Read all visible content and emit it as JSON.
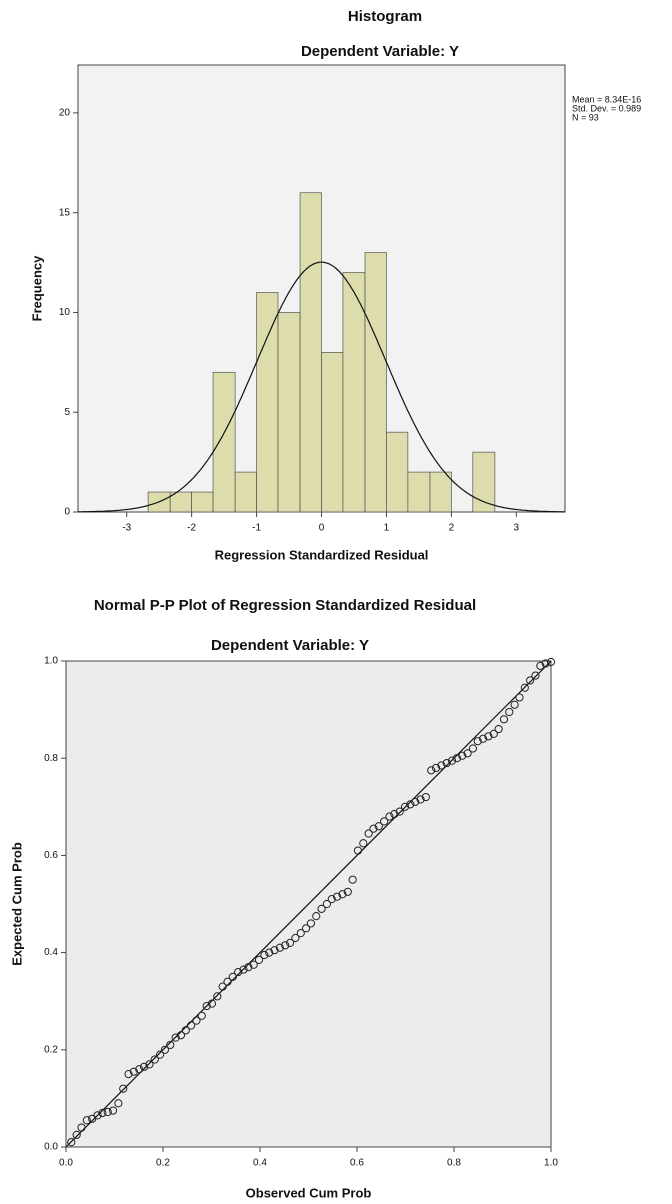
{
  "chart_data": [
    {
      "type": "histogram",
      "title": "Histogram",
      "subtitle": "Dependent Variable: Y",
      "x_label": "Regression Standardized Residual",
      "y_label": "Frequency",
      "bins": [
        -2.67,
        -2.33,
        -2,
        -1.67,
        -1.33,
        -1,
        -0.67,
        -0.33,
        0,
        0.33,
        0.67,
        1,
        1.33,
        1.67,
        2,
        2.33,
        2.67
      ],
      "values": [
        1,
        1,
        1,
        7,
        2,
        11,
        10,
        16,
        8,
        12,
        13,
        4,
        2,
        2,
        0,
        3
      ],
      "color": "#d8d8a0",
      "xlim": [
        -3.75,
        3.75
      ],
      "xticks": [
        -3,
        -2,
        -1,
        0,
        1,
        2,
        3
      ],
      "ylim": [
        0,
        22.4
      ],
      "yticks": [
        0,
        5,
        10,
        15,
        20
      ],
      "stats": [
        {
          "value": 8.34e-16,
          "label": "Mean = 8.34E-16"
        },
        {
          "value": 0.989,
          "label": "Std. Dev. = 0.989"
        },
        {
          "value": 93,
          "label": "N = 93"
        }
      ],
      "normal_curve": true,
      "grid": false
    },
    {
      "type": "scatter",
      "title": "Normal P-P Plot of Regression Standardized Residual",
      "subtitle": "Dependent Variable: Y",
      "x_label": "Observed Cum Prob",
      "y_label": "Expected Cum Prob",
      "x": [
        0.011,
        0.022,
        0.032,
        0.043,
        0.054,
        0.065,
        0.075,
        0.086,
        0.097,
        0.108,
        0.118,
        0.129,
        0.14,
        0.151,
        0.161,
        0.172,
        0.183,
        0.194,
        0.204,
        0.215,
        0.226,
        0.237,
        0.247,
        0.258,
        0.269,
        0.28,
        0.29,
        0.301,
        0.312,
        0.323,
        0.333,
        0.344,
        0.355,
        0.366,
        0.376,
        0.387,
        0.398,
        0.409,
        0.419,
        0.43,
        0.441,
        0.452,
        0.462,
        0.473,
        0.484,
        0.495,
        0.505,
        0.516,
        0.527,
        0.538,
        0.548,
        0.559,
        0.57,
        0.581,
        0.591,
        0.602,
        0.613,
        0.624,
        0.634,
        0.645,
        0.656,
        0.667,
        0.677,
        0.688,
        0.699,
        0.71,
        0.72,
        0.731,
        0.742,
        0.753,
        0.763,
        0.774,
        0.785,
        0.796,
        0.806,
        0.817,
        0.828,
        0.839,
        0.849,
        0.86,
        0.871,
        0.882,
        0.892,
        0.903,
        0.914,
        0.925,
        0.935,
        0.946,
        0.957,
        0.968,
        0.978,
        0.989,
        1.0
      ],
      "values": [
        0.01,
        0.025,
        0.04,
        0.055,
        0.058,
        0.065,
        0.07,
        0.072,
        0.075,
        0.09,
        0.12,
        0.15,
        0.155,
        0.16,
        0.165,
        0.17,
        0.18,
        0.19,
        0.2,
        0.21,
        0.225,
        0.23,
        0.24,
        0.25,
        0.26,
        0.27,
        0.29,
        0.295,
        0.31,
        0.33,
        0.34,
        0.35,
        0.36,
        0.365,
        0.37,
        0.375,
        0.385,
        0.395,
        0.4,
        0.405,
        0.41,
        0.415,
        0.42,
        0.43,
        0.44,
        0.45,
        0.46,
        0.475,
        0.49,
        0.5,
        0.51,
        0.515,
        0.52,
        0.525,
        0.55,
        0.61,
        0.625,
        0.645,
        0.655,
        0.66,
        0.67,
        0.68,
        0.685,
        0.69,
        0.7,
        0.705,
        0.71,
        0.715,
        0.72,
        0.775,
        0.78,
        0.785,
        0.79,
        0.795,
        0.8,
        0.805,
        0.81,
        0.82,
        0.835,
        0.84,
        0.845,
        0.85,
        0.86,
        0.88,
        0.895,
        0.91,
        0.925,
        0.945,
        0.96,
        0.97,
        0.99,
        0.995,
        0.998
      ],
      "color": "#222222",
      "xlim": [
        0,
        1
      ],
      "xticks": [
        {
          "value": 0,
          "label": "0.0"
        },
        0.2,
        0.4,
        0.6,
        0.8,
        {
          "value": 1,
          "label": "1.0"
        }
      ],
      "ylim": [
        0,
        1
      ],
      "yticks": [
        {
          "value": 0,
          "label": "0.0"
        },
        0.2,
        0.4,
        0.6,
        0.8,
        {
          "value": 1,
          "label": "1.0"
        }
      ],
      "reference_line": true,
      "grid": false
    }
  ]
}
